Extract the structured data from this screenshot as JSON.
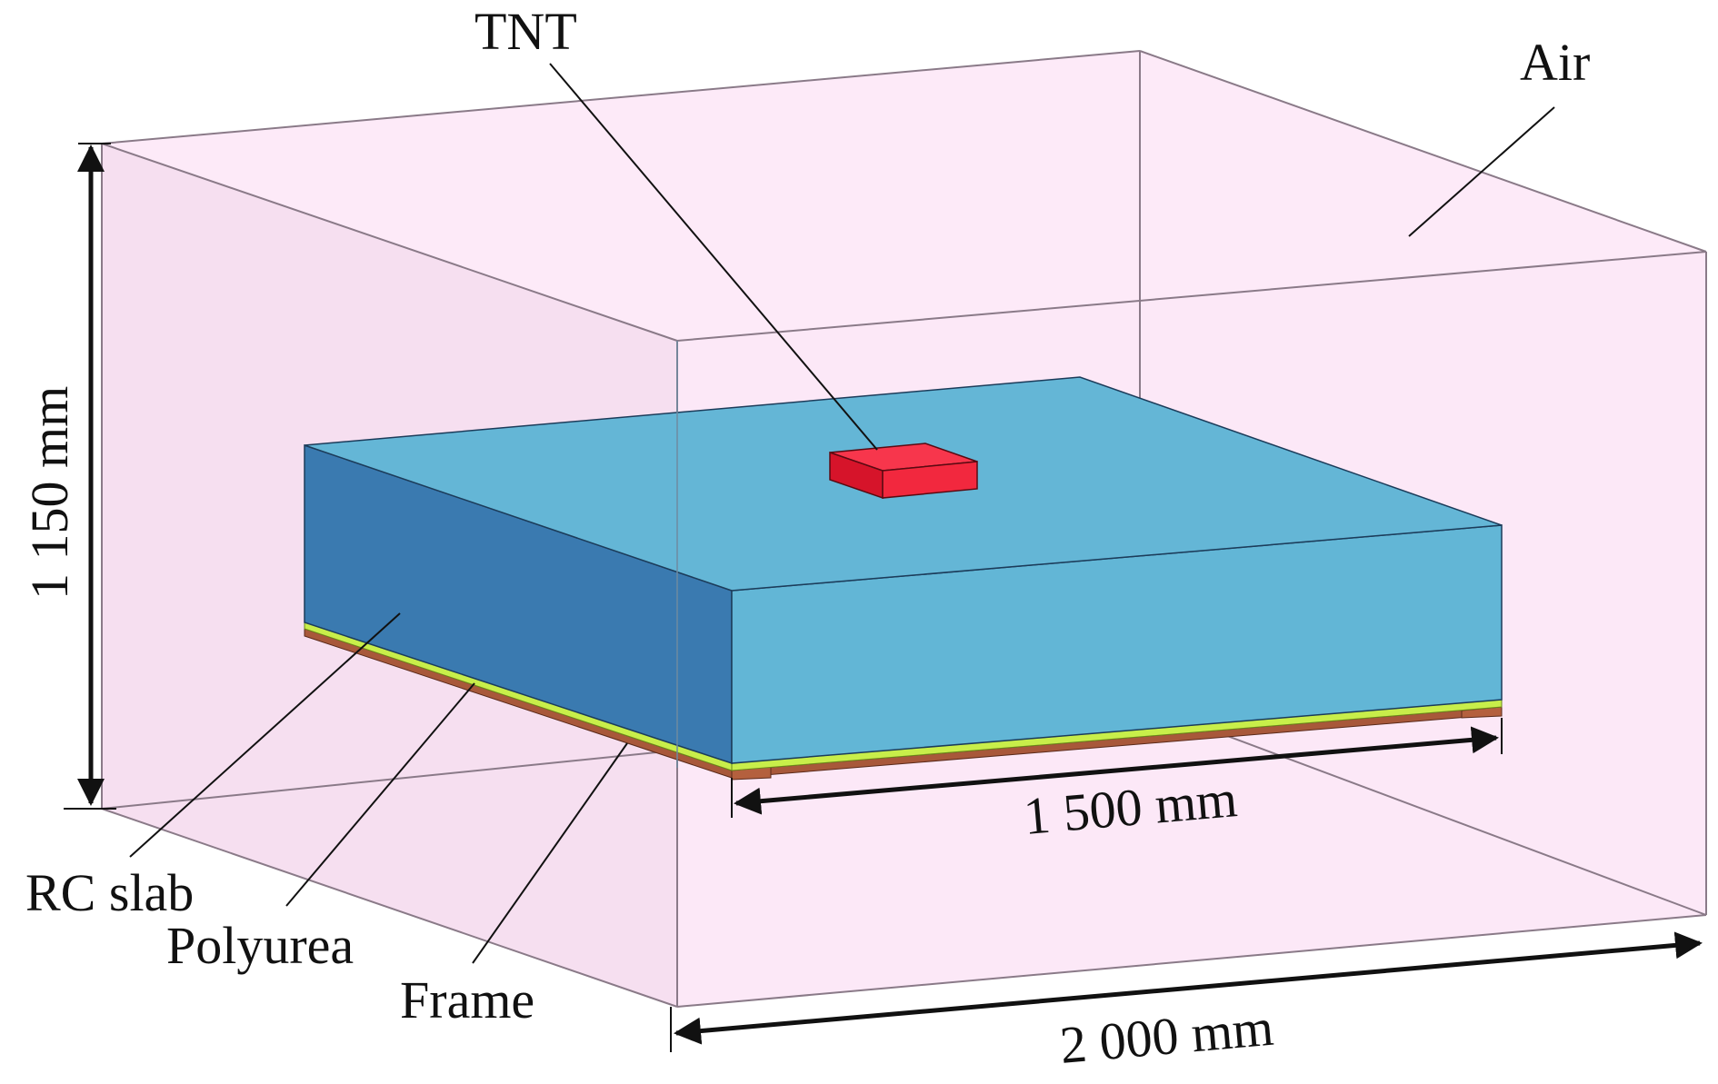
{
  "labels": {
    "tnt": "TNT",
    "air": "Air",
    "rc_slab": "RC slab",
    "polyurea": "Polyurea",
    "frame": "Frame"
  },
  "dimensions": {
    "height": "1 150 mm",
    "slab_width": "1 500 mm",
    "domain_width": "2 000 mm"
  },
  "colors": {
    "air_fill": "#fde6f6",
    "air_edge": "#8a7a88",
    "slab_top": "#64b6d6",
    "slab_front": "#62b6d6",
    "slab_side": "#3a7ab0",
    "polyurea": "#c8ee4a",
    "frame": "#a8583a",
    "tnt_top": "#f7364c",
    "tnt_side": "#d6142a",
    "line": "#111111"
  }
}
